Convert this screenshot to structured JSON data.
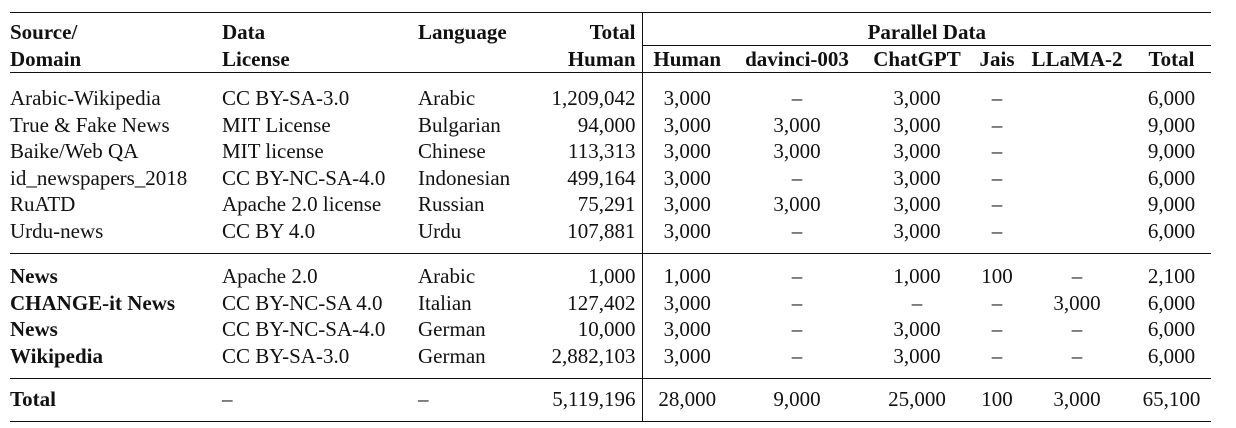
{
  "header": {
    "source": [
      "Source/",
      "Domain"
    ],
    "license": [
      "Data",
      "License"
    ],
    "language": "Language",
    "total_human": [
      "Total",
      "Human"
    ],
    "parallel": "Parallel Data",
    "sub": [
      "Human",
      "davinci-003",
      "ChatGPT",
      "Jais",
      "LLaMA-2",
      "Total"
    ]
  },
  "group1": [
    {
      "source": "Arabic-Wikipedia",
      "license": "CC BY-SA-3.0",
      "language": "Arabic",
      "total_human": "1,209,042",
      "human": "3,000",
      "davinci": "–",
      "chatgpt": "3,000",
      "jais": "–",
      "llama": "",
      "total": "6,000"
    },
    {
      "source": "True & Fake News",
      "license": "MIT License",
      "language": "Bulgarian",
      "total_human": "94,000",
      "human": "3,000",
      "davinci": "3,000",
      "chatgpt": "3,000",
      "jais": "–",
      "llama": "",
      "total": "9,000"
    },
    {
      "source": "Baike/Web QA",
      "license": "MIT license",
      "language": "Chinese",
      "total_human": "113,313",
      "human": "3,000",
      "davinci": "3,000",
      "chatgpt": "3,000",
      "jais": "–",
      "llama": "",
      "total": "9,000"
    },
    {
      "source": "id_newspapers_2018",
      "license": "CC BY-NC-SA-4.0",
      "language": "Indonesian",
      "total_human": "499,164",
      "human": "3,000",
      "davinci": "–",
      "chatgpt": "3,000",
      "jais": "–",
      "llama": "",
      "total": "6,000"
    },
    {
      "source": "RuATD",
      "license": "Apache 2.0 license",
      "language": "Russian",
      "total_human": "75,291",
      "human": "3,000",
      "davinci": "3,000",
      "chatgpt": "3,000",
      "jais": "–",
      "llama": "",
      "total": "9,000"
    },
    {
      "source": "Urdu-news",
      "license": "CC BY 4.0",
      "language": "Urdu",
      "total_human": "107,881",
      "human": "3,000",
      "davinci": "–",
      "chatgpt": "3,000",
      "jais": "–",
      "llama": "",
      "total": "6,000"
    }
  ],
  "group2": [
    {
      "source": "News",
      "license": "Apache 2.0",
      "language": "Arabic",
      "total_human": "1,000",
      "human": "1,000",
      "davinci": "–",
      "chatgpt": "1,000",
      "jais": "100",
      "llama": "–",
      "total": "2,100"
    },
    {
      "source": "CHANGE-it News",
      "license": "CC BY-NC-SA 4.0",
      "language": "Italian",
      "total_human": "127,402",
      "human": "3,000",
      "davinci": "–",
      "chatgpt": "–",
      "jais": "–",
      "llama": "3,000",
      "total": "6,000"
    },
    {
      "source": "News",
      "license": "CC BY-NC-SA-4.0",
      "language": "German",
      "total_human": "10,000",
      "human": "3,000",
      "davinci": "–",
      "chatgpt": "3,000",
      "jais": "–",
      "llama": "–",
      "total": "6,000"
    },
    {
      "source": "Wikipedia",
      "license": "CC BY-SA-3.0",
      "language": "German",
      "total_human": "2,882,103",
      "human": "3,000",
      "davinci": "–",
      "chatgpt": "3,000",
      "jais": "–",
      "llama": "–",
      "total": "6,000"
    }
  ],
  "total_row": {
    "source": "Total",
    "license": "–",
    "language": "–",
    "total_human": "5,119,196",
    "human": "28,000",
    "davinci": "9,000",
    "chatgpt": "25,000",
    "jais": "100",
    "llama": "3,000",
    "total": "65,100"
  }
}
